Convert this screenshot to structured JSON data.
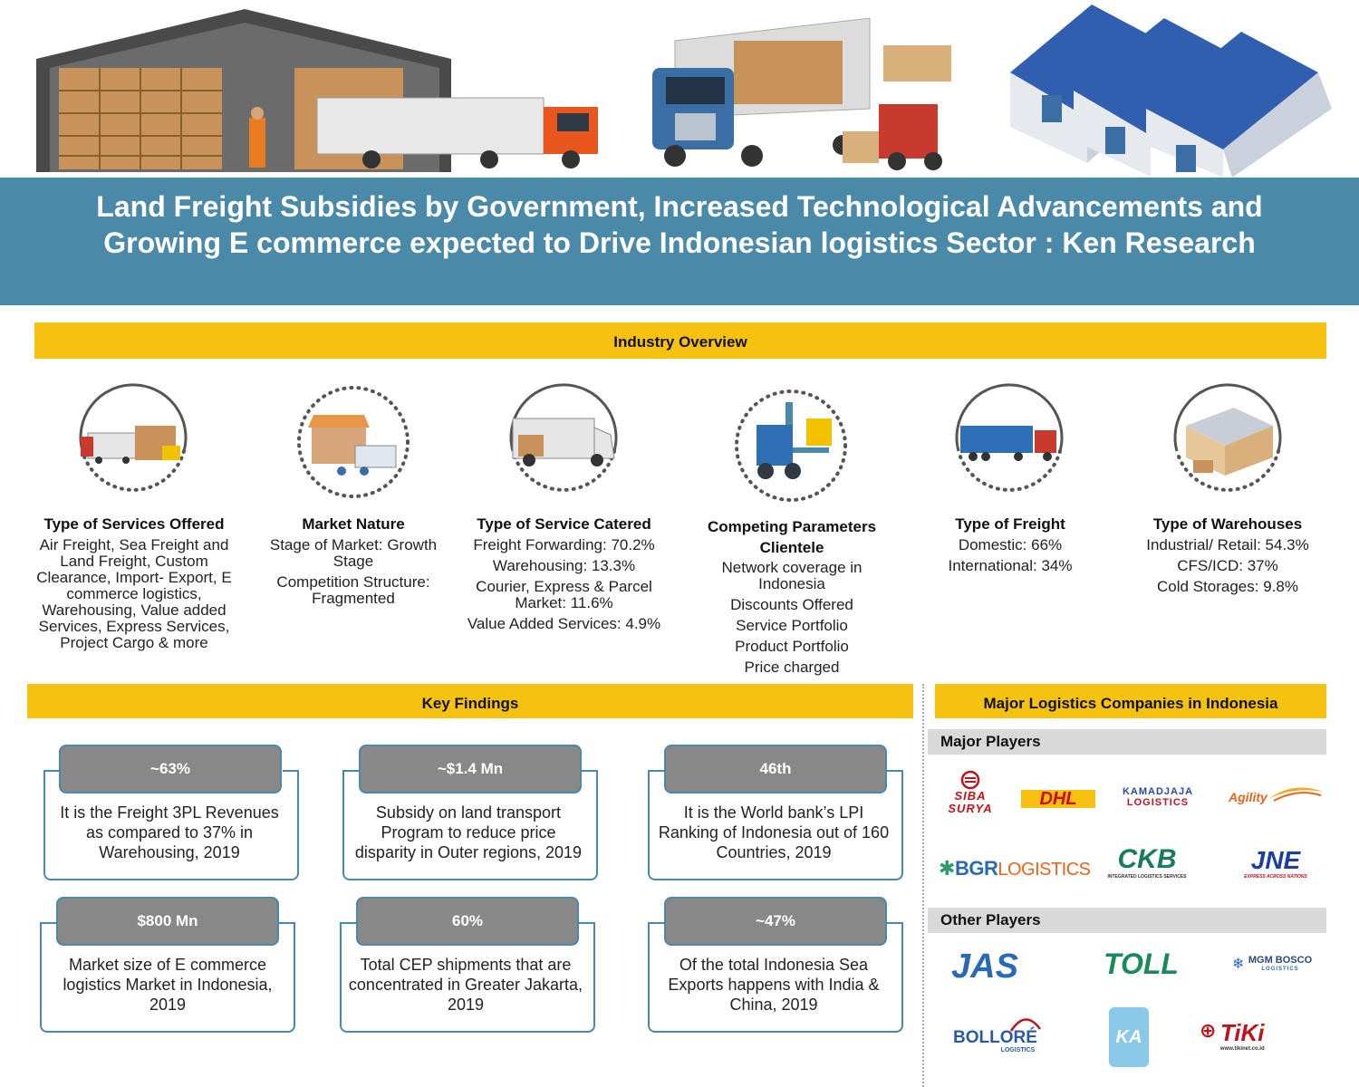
{
  "title": "Land Freight Subsidies by Government, Increased Technological Advancements and Growing E commerce expected to Drive Indonesian logistics Sector : Ken Research",
  "industry_overview": {
    "heading": "Industry Overview",
    "columns": [
      {
        "heading": "Type of Services Offered",
        "lines": [
          "Air Freight, Sea Freight and Land Freight, Custom Clearance, Import- Export, E commerce logistics, Warehousing, Value added Services, Express Services, Project Cargo  & more"
        ]
      },
      {
        "heading": "Market Nature",
        "lines": [
          "Stage of Market: Growth Stage",
          "Competition Structure: Fragmented"
        ]
      },
      {
        "heading": "Type of Service Catered",
        "lines": [
          "Freight Forwarding: 70.2%",
          "Warehousing: 13.3%",
          "Courier, Express & Parcel Market: 11.6%",
          "Value Added Services: 4.9%"
        ]
      },
      {
        "heading": "Competing Parameters Clientele",
        "lines": [
          "Network coverage in Indonesia",
          "Discounts Offered",
          "Service Portfolio",
          "Product Portfolio",
          "Price charged"
        ]
      },
      {
        "heading": "Type of Freight",
        "lines": [
          "Domestic:  66%",
          "International: 34%"
        ]
      },
      {
        "heading": "Type of Warehouses",
        "lines": [
          "Industrial/ Retail: 54.3%",
          "CFS/ICD: 37%",
          "Cold Storages: 9.8%"
        ]
      }
    ]
  },
  "key_findings": {
    "heading": "Key Findings",
    "items": [
      {
        "value": "~63%",
        "text": "It is the Freight 3PL Revenues as compared to 37% in Warehousing, 2019"
      },
      {
        "value": "~$1.4 Mn",
        "text": "Subsidy on land transport Program to reduce price disparity in Outer regions, 2019"
      },
      {
        "value": "46th",
        "text": "It is the World bank’s LPI Ranking of Indonesia out of 160 Countries, 2019"
      },
      {
        "value": "$800 Mn",
        "text": "Market size of E commerce logistics Market in Indonesia, 2019"
      },
      {
        "value": "60%",
        "text": "Total CEP shipments that are concentrated in Greater Jakarta, 2019"
      },
      {
        "value": "~47%",
        "text": "Of the total Indonesia Sea Exports happens with India & China, 2019"
      }
    ]
  },
  "companies": {
    "heading": "Major  Logistics Companies in Indonesia",
    "major_label": "Major Players",
    "other_label": "Other Players",
    "major": [
      {
        "name": "SIBA SURYA",
        "l1": "SIBA",
        "l2": "SURYA"
      },
      {
        "name": "DHL",
        "l1": "DHL"
      },
      {
        "name": "KAMADJAJA LOGISTICS",
        "l1": "KAMADJAJA",
        "l2": "LOGISTICS"
      },
      {
        "name": "Agility",
        "l1": "Agility"
      },
      {
        "name": "BGR LOGISTICS",
        "l1": "BGR",
        "l2": "LOGISTICS"
      },
      {
        "name": "CKB",
        "l1": "CKB",
        "l2": "INTEGRATED LOGISTICS SERVICES"
      },
      {
        "name": "JNE",
        "l1": "JNE",
        "l2": "EXPRESS ACROSS NATIONS"
      }
    ],
    "other": [
      {
        "name": "JAS",
        "l1": "JAS"
      },
      {
        "name": "TOLL",
        "l1": "TOLL"
      },
      {
        "name": "MGM BOSCO",
        "l1": "MGM BOSCO",
        "l2": "LOGISTICS"
      },
      {
        "name": "BOLLORÉ LOGISTICS",
        "l1": "BOLLORÉ",
        "l2": "LOGISTICS"
      },
      {
        "name": "KA",
        "l1": "KA"
      },
      {
        "name": "TIKI",
        "l1": "TiKi",
        "l2": "www.tikinet.co.id"
      }
    ]
  }
}
